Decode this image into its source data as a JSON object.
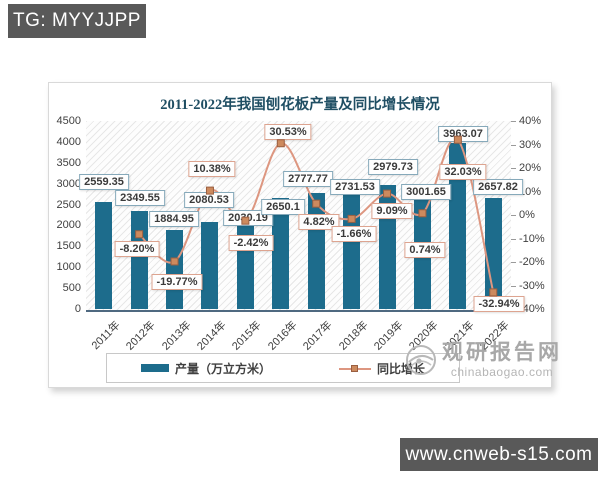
{
  "badges": {
    "top_left": "TG: MYYJJPP",
    "bottom_right": "www.cnweb-s15.com"
  },
  "watermark": {
    "name": "观研报告网",
    "domain": "chinabaogao.com"
  },
  "chart": {
    "title": "2011-2022年我国刨花板产量及同比增长情况",
    "legend": [
      {
        "label": "产量（万立方米）",
        "marker": "bar",
        "color": "#1d6c8c"
      },
      {
        "label": "同比增长",
        "marker": "line-square",
        "color": "#dd9680"
      }
    ]
  },
  "chart_data": {
    "type": "bar",
    "subtype": "bar-line-combo",
    "title": "2011-2022年我国刨花板产量及同比增长情况",
    "categories": [
      "2011年",
      "2012年",
      "2013年",
      "2014年",
      "2015年",
      "2016年",
      "2017年",
      "2018年",
      "2019年",
      "2020年",
      "2021年",
      "2022年"
    ],
    "series": [
      {
        "name": "产量（万立方米）",
        "type": "bar",
        "axis": "left",
        "color": "#1d6c8c",
        "values": [
          2559.35,
          2349.55,
          1884.95,
          2080.53,
          2030.19,
          2650.1,
          2777.77,
          2731.53,
          2979.73,
          3001.65,
          3963.07,
          2657.82
        ],
        "labels": [
          "2559.35",
          "2349.55",
          "1884.95",
          "2080.53",
          "2030.19",
          "2650.1",
          "2777.77",
          "2731.53",
          "2979.73",
          "3001.65",
          "3963.07",
          "2657.82"
        ]
      },
      {
        "name": "同比增长",
        "type": "line",
        "axis": "right",
        "color": "#dd9680",
        "values": [
          null,
          -8.2,
          -19.77,
          10.38,
          -2.42,
          30.53,
          4.82,
          -1.66,
          9.09,
          0.74,
          32.03,
          -32.94
        ],
        "labels": [
          null,
          "-8.20%",
          "-19.77%",
          "10.38%",
          "-2.42%",
          "30.53%",
          "4.82%",
          "-1.66%",
          "9.09%",
          "0.74%",
          "32.03%",
          "-32.94%"
        ]
      }
    ],
    "left_axis": {
      "min": 0,
      "max": 4500,
      "step": 500,
      "ticks": [
        "4500",
        "4000",
        "3500",
        "3000",
        "2500",
        "2000",
        "1500",
        "1000",
        "500",
        "0"
      ]
    },
    "right_axis": {
      "min": -40,
      "max": 40,
      "step": 10,
      "ticks": [
        "40%",
        "30%",
        "20%",
        "10%",
        "0%",
        "-10%",
        "-20%",
        "-30%",
        "-40%"
      ]
    },
    "grid": false,
    "legend_position": "bottom",
    "plot_background": "diagonal-hatch"
  }
}
